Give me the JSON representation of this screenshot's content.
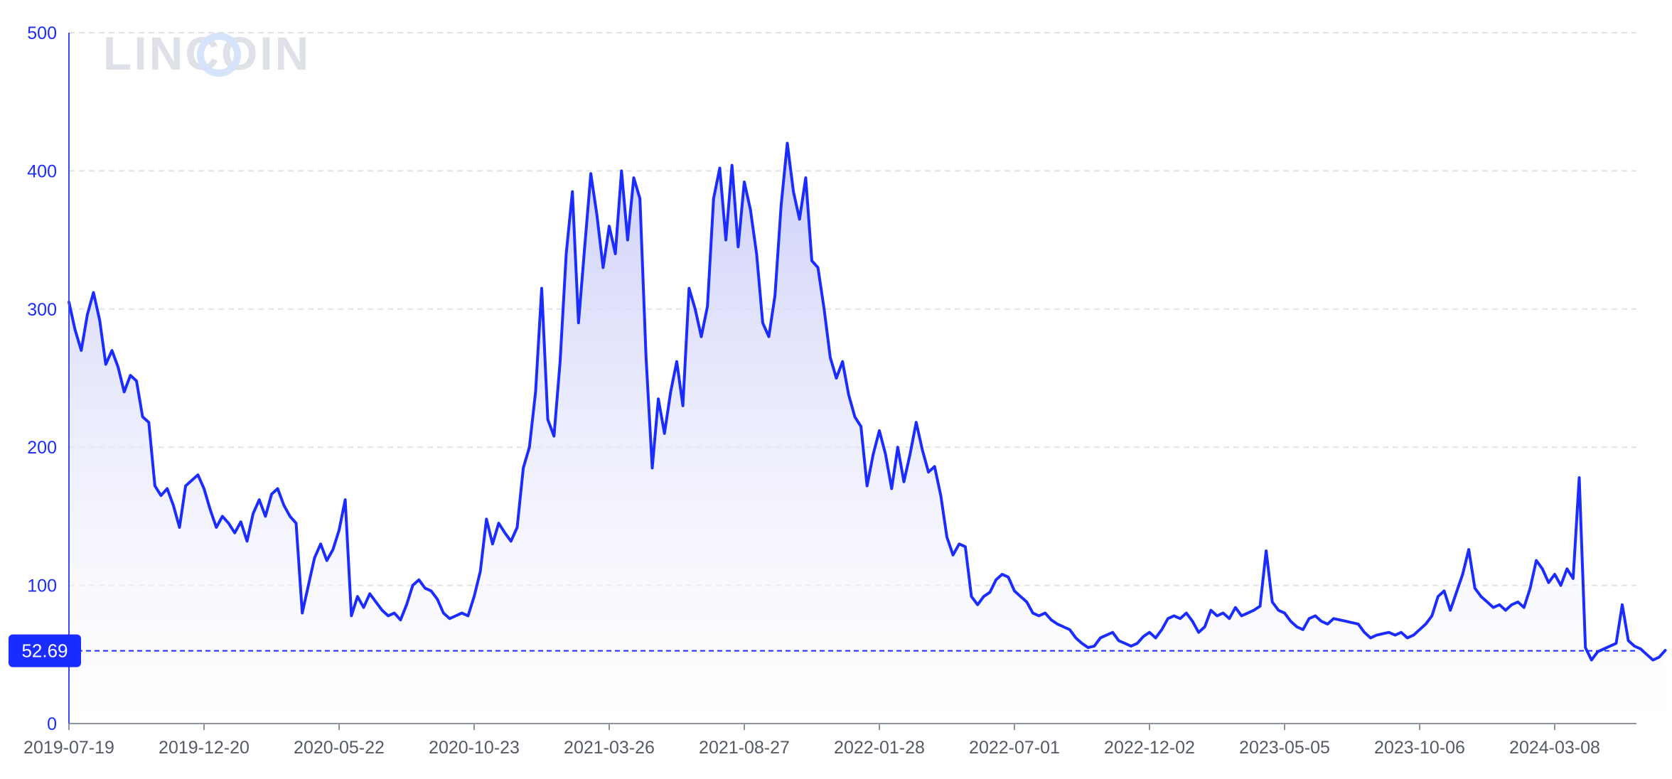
{
  "watermark": "LINCOIN",
  "chart_data": {
    "type": "area",
    "title": "",
    "xlabel": "",
    "ylabel": "",
    "ylim": [
      0,
      500
    ],
    "yticks": [
      0,
      100,
      200,
      300,
      400,
      500
    ],
    "xticks": [
      "2019-07-19",
      "2019-12-20",
      "2020-05-22",
      "2020-10-23",
      "2021-03-26",
      "2021-08-27",
      "2022-01-28",
      "2022-07-01",
      "2022-12-02",
      "2023-05-05",
      "2023-10-06",
      "2024-03-08"
    ],
    "grid": true,
    "current_value": 52.69,
    "colors": {
      "line": "#1a2cff",
      "fill_top": "#c9cbf8",
      "fill_bottom": "#ffffff",
      "grid": "#e0e2e8",
      "axis": "#3b47ff",
      "badge": "#1a2cff",
      "watermark_text": "#dfe1e8",
      "watermark_ring": "#d5e3fb"
    },
    "series": [
      {
        "values": [
          [
            "2019-07-19",
            305
          ],
          [
            "2019-07-26",
            285
          ],
          [
            "2019-08-02",
            270
          ],
          [
            "2019-08-09",
            296
          ],
          [
            "2019-08-16",
            312
          ],
          [
            "2019-08-23",
            292
          ],
          [
            "2019-08-30",
            260
          ],
          [
            "2019-09-06",
            270
          ],
          [
            "2019-09-13",
            258
          ],
          [
            "2019-09-20",
            240
          ],
          [
            "2019-09-27",
            252
          ],
          [
            "2019-10-04",
            248
          ],
          [
            "2019-10-11",
            222
          ],
          [
            "2019-10-18",
            218
          ],
          [
            "2019-10-25",
            172
          ],
          [
            "2019-11-01",
            165
          ],
          [
            "2019-11-08",
            170
          ],
          [
            "2019-11-15",
            158
          ],
          [
            "2019-11-22",
            142
          ],
          [
            "2019-11-29",
            172
          ],
          [
            "2019-12-06",
            176
          ],
          [
            "2019-12-13",
            180
          ],
          [
            "2019-12-20",
            170
          ],
          [
            "2019-12-27",
            155
          ],
          [
            "2020-01-03",
            142
          ],
          [
            "2020-01-10",
            150
          ],
          [
            "2020-01-17",
            145
          ],
          [
            "2020-01-24",
            138
          ],
          [
            "2020-01-31",
            146
          ],
          [
            "2020-02-07",
            132
          ],
          [
            "2020-02-14",
            152
          ],
          [
            "2020-02-21",
            162
          ],
          [
            "2020-02-28",
            150
          ],
          [
            "2020-03-06",
            166
          ],
          [
            "2020-03-13",
            170
          ],
          [
            "2020-03-20",
            158
          ],
          [
            "2020-03-27",
            150
          ],
          [
            "2020-04-03",
            145
          ],
          [
            "2020-04-10",
            80
          ],
          [
            "2020-04-17",
            100
          ],
          [
            "2020-04-24",
            120
          ],
          [
            "2020-05-01",
            130
          ],
          [
            "2020-05-08",
            118
          ],
          [
            "2020-05-15",
            126
          ],
          [
            "2020-05-22",
            140
          ],
          [
            "2020-05-29",
            162
          ],
          [
            "2020-06-05",
            78
          ],
          [
            "2020-06-12",
            92
          ],
          [
            "2020-06-19",
            84
          ],
          [
            "2020-06-26",
            94
          ],
          [
            "2020-07-03",
            88
          ],
          [
            "2020-07-10",
            82
          ],
          [
            "2020-07-17",
            78
          ],
          [
            "2020-07-24",
            80
          ],
          [
            "2020-07-31",
            75
          ],
          [
            "2020-08-07",
            86
          ],
          [
            "2020-08-14",
            100
          ],
          [
            "2020-08-21",
            104
          ],
          [
            "2020-08-28",
            98
          ],
          [
            "2020-09-04",
            96
          ],
          [
            "2020-09-11",
            90
          ],
          [
            "2020-09-18",
            80
          ],
          [
            "2020-09-25",
            76
          ],
          [
            "2020-10-02",
            78
          ],
          [
            "2020-10-09",
            80
          ],
          [
            "2020-10-16",
            78
          ],
          [
            "2020-10-23",
            92
          ],
          [
            "2020-10-30",
            110
          ],
          [
            "2020-11-06",
            148
          ],
          [
            "2020-11-13",
            130
          ],
          [
            "2020-11-20",
            145
          ],
          [
            "2020-11-27",
            138
          ],
          [
            "2020-12-04",
            132
          ],
          [
            "2020-12-11",
            142
          ],
          [
            "2020-12-18",
            185
          ],
          [
            "2020-12-25",
            200
          ],
          [
            "2021-01-01",
            240
          ],
          [
            "2021-01-08",
            315
          ],
          [
            "2021-01-15",
            220
          ],
          [
            "2021-01-22",
            208
          ],
          [
            "2021-01-29",
            262
          ],
          [
            "2021-02-05",
            340
          ],
          [
            "2021-02-12",
            385
          ],
          [
            "2021-02-19",
            290
          ],
          [
            "2021-02-26",
            345
          ],
          [
            "2021-03-05",
            398
          ],
          [
            "2021-03-12",
            368
          ],
          [
            "2021-03-19",
            330
          ],
          [
            "2021-03-26",
            360
          ],
          [
            "2021-04-02",
            340
          ],
          [
            "2021-04-09",
            400
          ],
          [
            "2021-04-16",
            350
          ],
          [
            "2021-04-23",
            395
          ],
          [
            "2021-04-30",
            380
          ],
          [
            "2021-05-07",
            265
          ],
          [
            "2021-05-14",
            185
          ],
          [
            "2021-05-21",
            235
          ],
          [
            "2021-05-28",
            210
          ],
          [
            "2021-06-04",
            240
          ],
          [
            "2021-06-11",
            262
          ],
          [
            "2021-06-18",
            230
          ],
          [
            "2021-06-25",
            315
          ],
          [
            "2021-07-02",
            300
          ],
          [
            "2021-07-09",
            280
          ],
          [
            "2021-07-16",
            302
          ],
          [
            "2021-07-23",
            380
          ],
          [
            "2021-07-30",
            402
          ],
          [
            "2021-08-06",
            350
          ],
          [
            "2021-08-13",
            404
          ],
          [
            "2021-08-20",
            345
          ],
          [
            "2021-08-27",
            392
          ],
          [
            "2021-09-03",
            372
          ],
          [
            "2021-09-10",
            340
          ],
          [
            "2021-09-17",
            290
          ],
          [
            "2021-09-24",
            280
          ],
          [
            "2021-10-01",
            310
          ],
          [
            "2021-10-08",
            375
          ],
          [
            "2021-10-15",
            420
          ],
          [
            "2021-10-22",
            385
          ],
          [
            "2021-10-29",
            365
          ],
          [
            "2021-11-05",
            395
          ],
          [
            "2021-11-12",
            335
          ],
          [
            "2021-11-19",
            330
          ],
          [
            "2021-11-26",
            300
          ],
          [
            "2021-12-03",
            265
          ],
          [
            "2021-12-10",
            250
          ],
          [
            "2021-12-17",
            262
          ],
          [
            "2021-12-24",
            238
          ],
          [
            "2021-12-31",
            222
          ],
          [
            "2022-01-07",
            215
          ],
          [
            "2022-01-14",
            172
          ],
          [
            "2022-01-21",
            195
          ],
          [
            "2022-01-28",
            212
          ],
          [
            "2022-02-04",
            195
          ],
          [
            "2022-02-11",
            170
          ],
          [
            "2022-02-18",
            200
          ],
          [
            "2022-02-25",
            175
          ],
          [
            "2022-03-04",
            195
          ],
          [
            "2022-03-11",
            218
          ],
          [
            "2022-03-18",
            198
          ],
          [
            "2022-03-25",
            182
          ],
          [
            "2022-04-01",
            186
          ],
          [
            "2022-04-08",
            165
          ],
          [
            "2022-04-15",
            135
          ],
          [
            "2022-04-22",
            122
          ],
          [
            "2022-04-29",
            130
          ],
          [
            "2022-05-06",
            128
          ],
          [
            "2022-05-13",
            92
          ],
          [
            "2022-05-20",
            86
          ],
          [
            "2022-05-27",
            92
          ],
          [
            "2022-06-03",
            95
          ],
          [
            "2022-06-10",
            104
          ],
          [
            "2022-06-17",
            108
          ],
          [
            "2022-06-24",
            106
          ],
          [
            "2022-07-01",
            96
          ],
          [
            "2022-07-08",
            92
          ],
          [
            "2022-07-15",
            88
          ],
          [
            "2022-07-22",
            80
          ],
          [
            "2022-07-29",
            78
          ],
          [
            "2022-08-05",
            80
          ],
          [
            "2022-08-12",
            75
          ],
          [
            "2022-08-19",
            72
          ],
          [
            "2022-08-26",
            70
          ],
          [
            "2022-09-02",
            68
          ],
          [
            "2022-09-09",
            62
          ],
          [
            "2022-09-16",
            58
          ],
          [
            "2022-09-23",
            55
          ],
          [
            "2022-09-30",
            56
          ],
          [
            "2022-10-07",
            62
          ],
          [
            "2022-10-14",
            64
          ],
          [
            "2022-10-21",
            66
          ],
          [
            "2022-10-28",
            60
          ],
          [
            "2022-11-04",
            58
          ],
          [
            "2022-11-11",
            56
          ],
          [
            "2022-11-18",
            58
          ],
          [
            "2022-11-25",
            63
          ],
          [
            "2022-12-02",
            66
          ],
          [
            "2022-12-09",
            62
          ],
          [
            "2022-12-16",
            68
          ],
          [
            "2022-12-23",
            76
          ],
          [
            "2022-12-30",
            78
          ],
          [
            "2023-01-06",
            76
          ],
          [
            "2023-01-13",
            80
          ],
          [
            "2023-01-20",
            74
          ],
          [
            "2023-01-27",
            66
          ],
          [
            "2023-02-03",
            70
          ],
          [
            "2023-02-10",
            82
          ],
          [
            "2023-02-17",
            78
          ],
          [
            "2023-02-24",
            80
          ],
          [
            "2023-03-03",
            76
          ],
          [
            "2023-03-10",
            84
          ],
          [
            "2023-03-17",
            78
          ],
          [
            "2023-03-24",
            80
          ],
          [
            "2023-03-31",
            82
          ],
          [
            "2023-04-07",
            85
          ],
          [
            "2023-04-14",
            125
          ],
          [
            "2023-04-21",
            88
          ],
          [
            "2023-04-28",
            82
          ],
          [
            "2023-05-05",
            80
          ],
          [
            "2023-05-12",
            74
          ],
          [
            "2023-05-19",
            70
          ],
          [
            "2023-05-26",
            68
          ],
          [
            "2023-06-02",
            76
          ],
          [
            "2023-06-09",
            78
          ],
          [
            "2023-06-16",
            74
          ],
          [
            "2023-06-23",
            72
          ],
          [
            "2023-06-30",
            76
          ],
          [
            "2023-07-07",
            75
          ],
          [
            "2023-07-14",
            74
          ],
          [
            "2023-07-21",
            73
          ],
          [
            "2023-07-28",
            72
          ],
          [
            "2023-08-04",
            66
          ],
          [
            "2023-08-11",
            62
          ],
          [
            "2023-08-18",
            64
          ],
          [
            "2023-08-25",
            65
          ],
          [
            "2023-09-01",
            66
          ],
          [
            "2023-09-08",
            64
          ],
          [
            "2023-09-15",
            66
          ],
          [
            "2023-09-22",
            62
          ],
          [
            "2023-09-29",
            64
          ],
          [
            "2023-10-06",
            68
          ],
          [
            "2023-10-13",
            72
          ],
          [
            "2023-10-20",
            78
          ],
          [
            "2023-10-27",
            92
          ],
          [
            "2023-11-03",
            96
          ],
          [
            "2023-11-10",
            82
          ],
          [
            "2023-11-17",
            95
          ],
          [
            "2023-11-24",
            108
          ],
          [
            "2023-12-01",
            126
          ],
          [
            "2023-12-08",
            98
          ],
          [
            "2023-12-15",
            92
          ],
          [
            "2023-12-22",
            88
          ],
          [
            "2023-12-29",
            84
          ],
          [
            "2024-01-05",
            86
          ],
          [
            "2024-01-12",
            82
          ],
          [
            "2024-01-19",
            86
          ],
          [
            "2024-01-26",
            88
          ],
          [
            "2024-02-02",
            84
          ],
          [
            "2024-02-09",
            98
          ],
          [
            "2024-02-16",
            118
          ],
          [
            "2024-02-23",
            112
          ],
          [
            "2024-03-01",
            102
          ],
          [
            "2024-03-08",
            108
          ],
          [
            "2024-03-15",
            100
          ],
          [
            "2024-03-22",
            112
          ],
          [
            "2024-03-29",
            105
          ],
          [
            "2024-04-05",
            178
          ],
          [
            "2024-04-12",
            55
          ],
          [
            "2024-04-19",
            46
          ],
          [
            "2024-04-26",
            52
          ],
          [
            "2024-05-03",
            54
          ],
          [
            "2024-05-10",
            56
          ],
          [
            "2024-05-17",
            58
          ],
          [
            "2024-05-24",
            86
          ],
          [
            "2024-05-31",
            60
          ],
          [
            "2024-06-07",
            56
          ],
          [
            "2024-06-14",
            54
          ],
          [
            "2024-06-21",
            50
          ],
          [
            "2024-06-28",
            46
          ],
          [
            "2024-07-05",
            48
          ],
          [
            "2024-07-12",
            53
          ]
        ]
      }
    ]
  }
}
